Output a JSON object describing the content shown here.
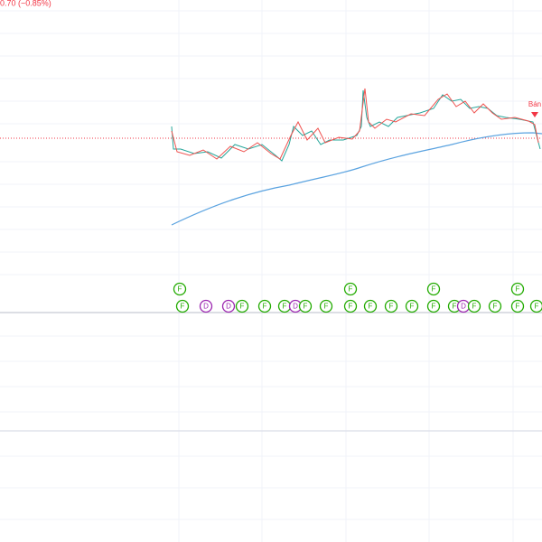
{
  "header": {
    "change": "0.70 (−0.85%)"
  },
  "signal": {
    "label": "Bán"
  },
  "events": {
    "top": [
      "F",
      "F",
      "F",
      "F"
    ],
    "bottom": [
      "F",
      "D",
      "D",
      "F",
      "F",
      "F",
      "D",
      "F",
      "F",
      "F",
      "F",
      "F",
      "F",
      "F",
      "F",
      "D",
      "F",
      "F",
      "F",
      "F"
    ]
  }
}
